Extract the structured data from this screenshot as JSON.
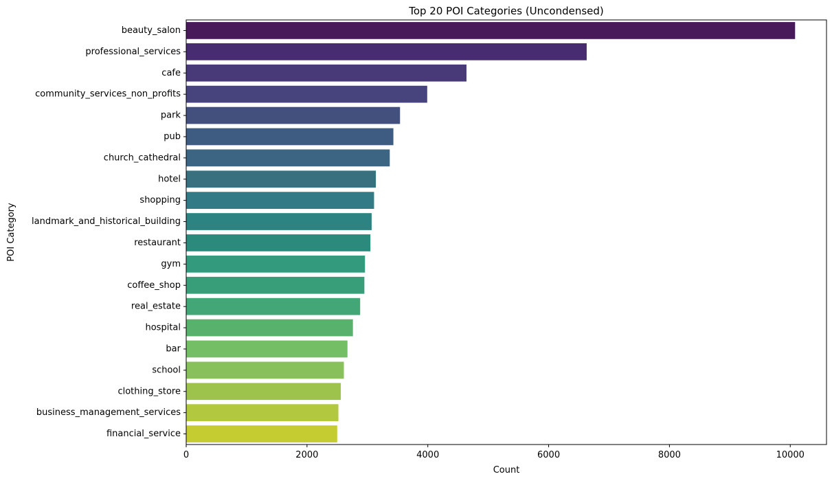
{
  "chart_data": {
    "type": "bar",
    "orientation": "horizontal",
    "title": "Top 20 POI Categories (Uncondensed)",
    "xlabel": "Count",
    "ylabel": "POI Category",
    "xlim": [
      0,
      10600
    ],
    "xticks": [
      0,
      2000,
      4000,
      6000,
      8000,
      10000
    ],
    "grid": false,
    "legend": "none",
    "palette": "viridis",
    "categories": [
      "beauty_salon",
      "professional_services",
      "cafe",
      "community_services_non_profits",
      "park",
      "pub",
      "church_cathedral",
      "hotel",
      "shopping",
      "landmark_and_historical_building",
      "restaurant",
      "gym",
      "coffee_shop",
      "real_estate",
      "hospital",
      "bar",
      "school",
      "clothing_store",
      "business_management_services",
      "financial_service"
    ],
    "values": [
      10080,
      6630,
      4640,
      3990,
      3540,
      3430,
      3370,
      3140,
      3110,
      3070,
      3050,
      2960,
      2950,
      2880,
      2760,
      2670,
      2610,
      2560,
      2520,
      2500
    ],
    "colors": [
      "#481a5a",
      "#482c72",
      "#483a78",
      "#47437d",
      "#434f7d",
      "#3e5b82",
      "#3c6583",
      "#39707f",
      "#327a85",
      "#2c8382",
      "#2c8a7c",
      "#339a7d",
      "#389e7a",
      "#43a677",
      "#58b26e",
      "#74bf66",
      "#88c15b",
      "#9ec34d",
      "#b2c93f",
      "#c5cc31"
    ]
  }
}
